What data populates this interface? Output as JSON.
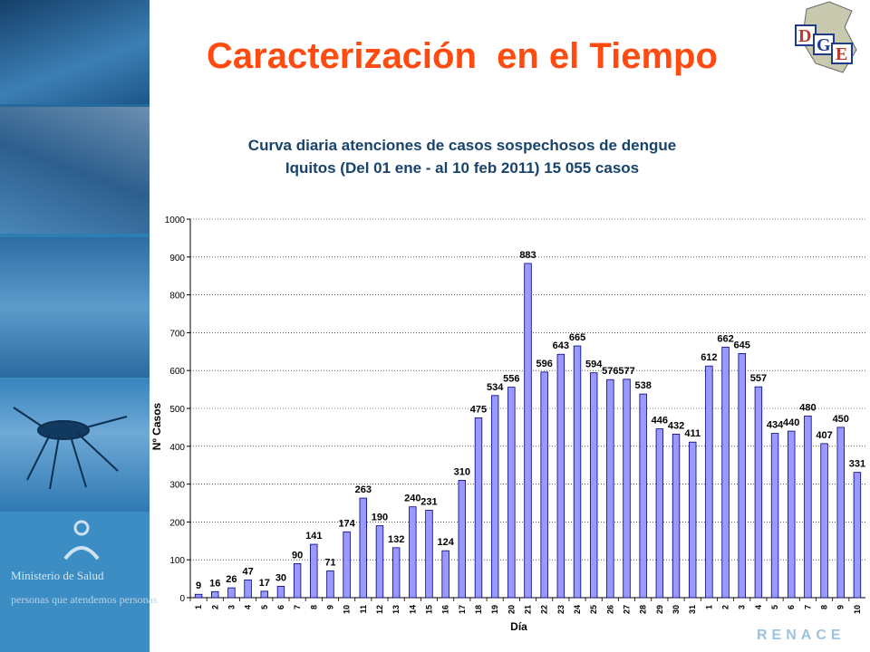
{
  "slide": {
    "title": "Caracterización  en el Tiempo",
    "subtitle_line1": "Curva diaria atenciones de casos sospechosos de dengue",
    "subtitle_line2": "Iquitos (Del 01 ene - al 10 feb 2011) 15 055 casos",
    "footer_ministry": "Ministerio de Salud",
    "footer_slogan": "personas que atendemos personas",
    "renace_logo": "RENACE",
    "dge_logo": "DGE"
  },
  "colors": {
    "title": "#ff4a10",
    "subtitle": "#17436d",
    "bar_fill": "#9999ff",
    "bar_stroke": "#000080",
    "side_panel": "#2a78ad"
  },
  "chart_data": {
    "type": "bar",
    "title": "",
    "xlabel": "Día",
    "ylabel": "Nº Casos",
    "ylim": [
      0,
      1000
    ],
    "yticks": [
      0,
      100,
      200,
      300,
      400,
      500,
      600,
      700,
      800,
      900,
      1000
    ],
    "grid": true,
    "categories": [
      "1",
      "2",
      "3",
      "4",
      "5",
      "6",
      "7",
      "8",
      "9",
      "10",
      "11",
      "12",
      "13",
      "14",
      "15",
      "16",
      "17",
      "18",
      "19",
      "20",
      "21",
      "22",
      "23",
      "24",
      "25",
      "26",
      "27",
      "28",
      "29",
      "30",
      "31",
      "1",
      "2",
      "3",
      "4",
      "5",
      "6",
      "7",
      "8",
      "9",
      "10"
    ],
    "values": [
      9,
      16,
      26,
      47,
      17,
      30,
      90,
      141,
      71,
      174,
      263,
      190,
      132,
      240,
      231,
      124,
      310,
      475,
      534,
      556,
      883,
      596,
      643,
      665,
      594,
      576,
      577,
      538,
      446,
      432,
      411,
      612,
      662,
      645,
      557,
      434,
      440,
      480,
      407,
      450,
      331
    ]
  }
}
